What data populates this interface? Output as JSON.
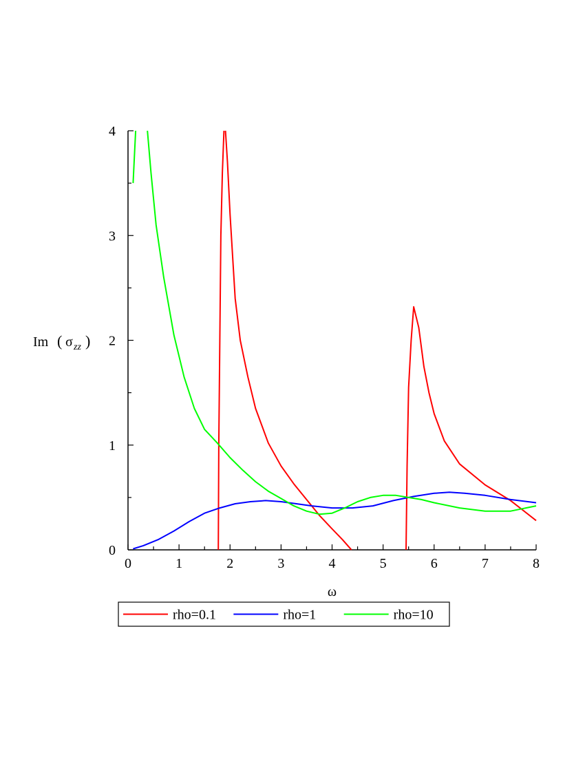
{
  "chart_data": {
    "type": "line",
    "xlabel": "ω",
    "ylabel": {
      "base": "Im",
      "symbol": "σ",
      "subscript": "zz"
    },
    "xlim": [
      0,
      8
    ],
    "ylim": [
      0,
      4
    ],
    "x_ticks": [
      "0",
      "1",
      "2",
      "3",
      "4",
      "5",
      "6",
      "7",
      "8"
    ],
    "y_ticks": [
      "0",
      "1",
      "2",
      "3",
      "4"
    ],
    "grid": false,
    "legend_position": "bottom",
    "series": [
      {
        "name": "rho=0.1",
        "color": "#ff0000",
        "segments": [
          [
            [
              1.77,
              0
            ],
            [
              1.78,
              1.0
            ],
            [
              1.8,
              2.0
            ],
            [
              1.82,
              3.0
            ],
            [
              1.85,
              3.6
            ],
            [
              1.88,
              4.0
            ]
          ],
          [
            [
              1.91,
              4.0
            ],
            [
              1.95,
              3.7
            ],
            [
              2.0,
              3.2
            ],
            [
              2.1,
              2.4
            ],
            [
              2.2,
              2.0
            ],
            [
              2.35,
              1.65
            ],
            [
              2.5,
              1.35
            ],
            [
              2.75,
              1.02
            ],
            [
              3.0,
              0.8
            ],
            [
              3.25,
              0.63
            ],
            [
              3.5,
              0.48
            ],
            [
              3.75,
              0.33
            ],
            [
              4.0,
              0.2
            ],
            [
              4.2,
              0.1
            ],
            [
              4.38,
              0
            ]
          ],
          [
            [
              5.45,
              0
            ],
            [
              5.47,
              0.8
            ],
            [
              5.5,
              1.55
            ],
            [
              5.55,
              2.0
            ],
            [
              5.6,
              2.32
            ],
            [
              5.7,
              2.12
            ],
            [
              5.8,
              1.75
            ],
            [
              5.9,
              1.5
            ],
            [
              6.0,
              1.3
            ],
            [
              6.2,
              1.04
            ],
            [
              6.5,
              0.82
            ],
            [
              7.0,
              0.62
            ],
            [
              7.5,
              0.47
            ],
            [
              8.0,
              0.28
            ]
          ]
        ]
      },
      {
        "name": "rho=1",
        "color": "#0000ff",
        "segments": [
          [
            [
              0.1,
              0.01
            ],
            [
              0.3,
              0.04
            ],
            [
              0.6,
              0.1
            ],
            [
              0.9,
              0.18
            ],
            [
              1.2,
              0.27
            ],
            [
              1.5,
              0.35
            ],
            [
              1.8,
              0.4
            ],
            [
              2.1,
              0.44
            ],
            [
              2.4,
              0.46
            ],
            [
              2.7,
              0.47
            ],
            [
              3.0,
              0.46
            ],
            [
              3.3,
              0.44
            ],
            [
              3.6,
              0.42
            ],
            [
              4.0,
              0.4
            ],
            [
              4.4,
              0.4
            ],
            [
              4.8,
              0.42
            ],
            [
              5.2,
              0.47
            ],
            [
              5.6,
              0.51
            ],
            [
              6.0,
              0.54
            ],
            [
              6.3,
              0.55
            ],
            [
              6.6,
              0.54
            ],
            [
              7.0,
              0.52
            ],
            [
              7.5,
              0.48
            ],
            [
              8.0,
              0.45
            ]
          ]
        ]
      },
      {
        "name": "rho=10",
        "color": "#00ff00",
        "segments": [
          [
            [
              0.1,
              3.5
            ],
            [
              0.13,
              3.8
            ],
            [
              0.15,
              4.0
            ]
          ],
          [
            [
              0.38,
              4.0
            ],
            [
              0.45,
              3.6
            ],
            [
              0.55,
              3.1
            ],
            [
              0.7,
              2.6
            ],
            [
              0.9,
              2.05
            ],
            [
              1.1,
              1.65
            ],
            [
              1.3,
              1.35
            ],
            [
              1.5,
              1.15
            ],
            [
              1.75,
              1.02
            ],
            [
              2.0,
              0.88
            ],
            [
              2.25,
              0.76
            ],
            [
              2.5,
              0.65
            ],
            [
              2.75,
              0.56
            ],
            [
              3.0,
              0.49
            ],
            [
              3.25,
              0.42
            ],
            [
              3.5,
              0.37
            ],
            [
              3.75,
              0.34
            ],
            [
              4.0,
              0.35
            ],
            [
              4.25,
              0.4
            ],
            [
              4.5,
              0.46
            ],
            [
              4.75,
              0.5
            ],
            [
              5.0,
              0.52
            ],
            [
              5.25,
              0.52
            ],
            [
              5.5,
              0.5
            ],
            [
              5.75,
              0.48
            ],
            [
              6.0,
              0.45
            ],
            [
              6.5,
              0.4
            ],
            [
              7.0,
              0.37
            ],
            [
              7.5,
              0.37
            ],
            [
              8.0,
              0.42
            ]
          ]
        ]
      }
    ]
  }
}
